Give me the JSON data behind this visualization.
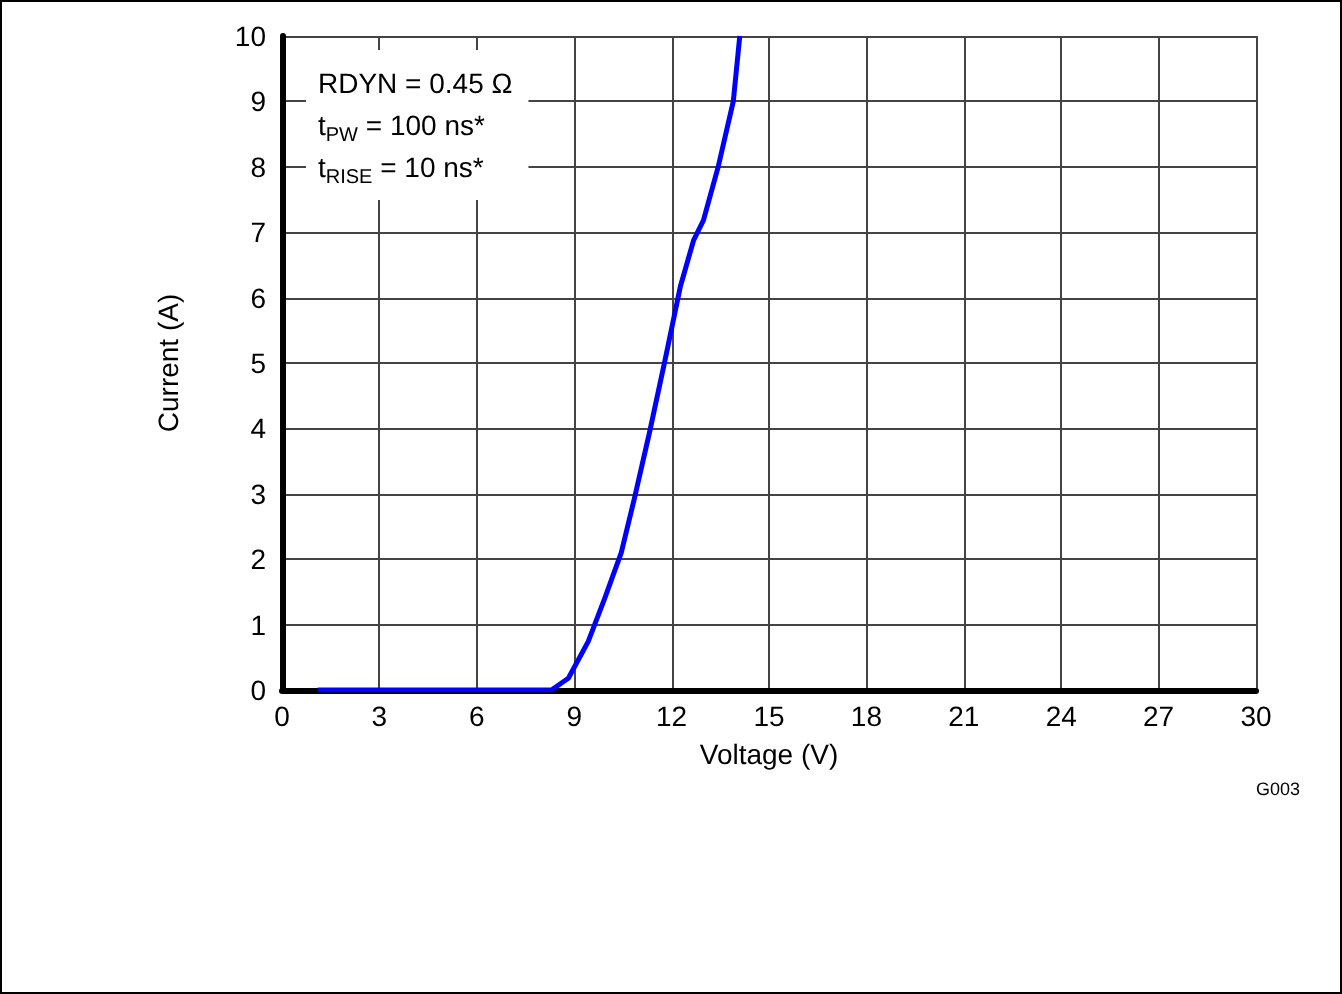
{
  "chart_data": {
    "type": "line",
    "xlabel": "Voltage (V)",
    "ylabel": "Current (A)",
    "annotations": [
      "RDYN = 0.45 Ω",
      "t$_{PW}$ = 100 ns*",
      "t$_{RISE}$ = 10 ns*",
      "G003"
    ],
    "series": [
      {
        "color": "#0000ff",
        "x": [
          1.1,
          3,
          6,
          8.3,
          8.82,
          9.43,
          9.94,
          10.45,
          10.85,
          11.32,
          11.8,
          12.27,
          12.68,
          12.98,
          13.43,
          13.9,
          14.1
        ],
        "values": [
          0,
          0,
          0,
          0,
          0.18,
          0.74,
          1.4,
          2.1,
          2.92,
          3.94,
          5.05,
          6.17,
          6.88,
          7.18,
          7.99,
          9.0,
          10
        ]
      }
    ],
    "xlim": [
      0,
      30
    ],
    "xticks": [
      0,
      3,
      6,
      9,
      12,
      15,
      18,
      21,
      24,
      27,
      30
    ],
    "ylim": [
      0,
      10
    ],
    "yticks": [
      0,
      1,
      2,
      3,
      4,
      5,
      6,
      7,
      8,
      9,
      10
    ],
    "grid": true,
    "marker": "none",
    "line_style": "solid"
  }
}
